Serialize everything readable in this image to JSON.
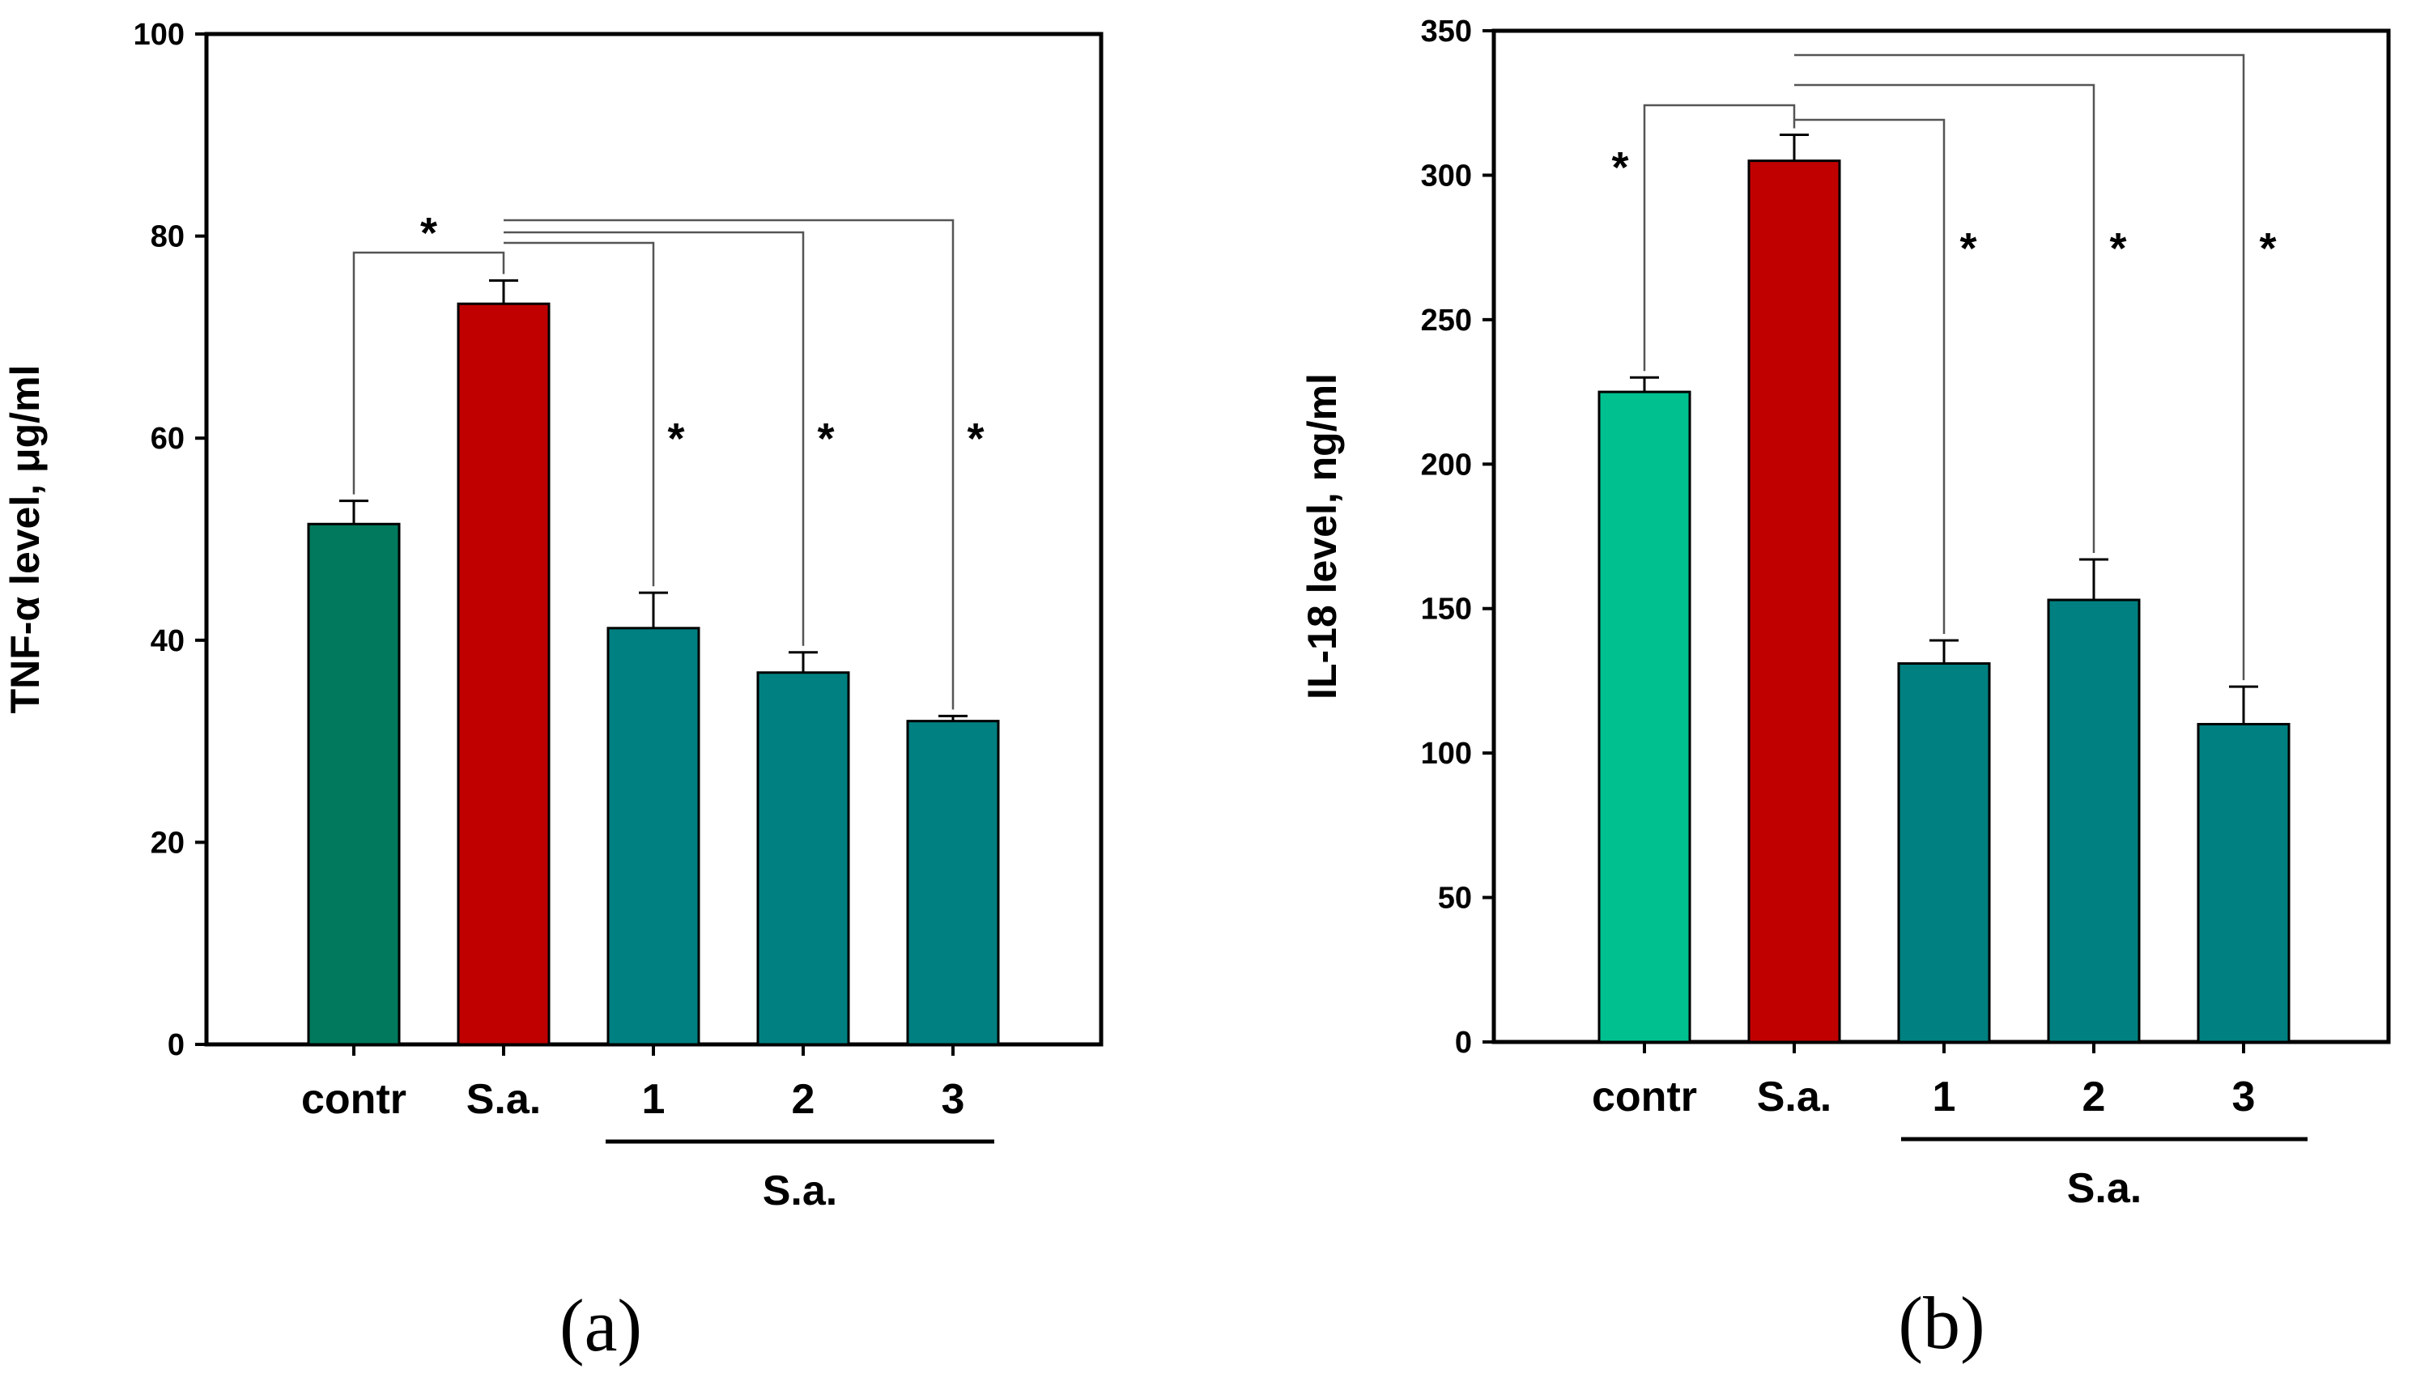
{
  "chart_data": [
    {
      "type": "bar",
      "panel_label": "(a)",
      "title": "",
      "ylabel": "TNF-α level, μg/ml",
      "xlabel": "",
      "ylim": [
        0,
        100
      ],
      "yticks": [
        0,
        20,
        40,
        60,
        80,
        100
      ],
      "categories": [
        "contr",
        "S.a.",
        "1",
        "2",
        "3"
      ],
      "group_label": "S.a.",
      "values": [
        51.5,
        73.3,
        41.2,
        36.8,
        32.0
      ],
      "errors": [
        2.3,
        2.3,
        3.5,
        2.0,
        0.5
      ],
      "colors": [
        "#00795c",
        "#c00000",
        "#008080",
        "#008080",
        "#008080"
      ],
      "significance": [
        {
          "from": 0,
          "to": 1,
          "label": "*"
        },
        {
          "from": 1,
          "to": 2,
          "label": "*"
        },
        {
          "from": 1,
          "to": 3,
          "label": "*"
        },
        {
          "from": 1,
          "to": 4,
          "label": "*"
        }
      ]
    },
    {
      "type": "bar",
      "panel_label": "(b)",
      "title": "",
      "ylabel": "IL-18 level, ng/ml",
      "xlabel": "",
      "ylim": [
        0,
        350
      ],
      "yticks": [
        0,
        50,
        100,
        150,
        200,
        250,
        300,
        350
      ],
      "categories": [
        "contr",
        "S.a.",
        "1",
        "2",
        "3"
      ],
      "group_label": "S.a.",
      "values": [
        225,
        305,
        131,
        153,
        110
      ],
      "errors": [
        5,
        9,
        8,
        14,
        13
      ],
      "colors": [
        "#00c090",
        "#c00000",
        "#008080",
        "#008080",
        "#008080"
      ],
      "significance": [
        {
          "from": 0,
          "to": 1,
          "label": "*"
        },
        {
          "from": 1,
          "to": 2,
          "label": "*"
        },
        {
          "from": 1,
          "to": 3,
          "label": "*"
        },
        {
          "from": 1,
          "to": 4,
          "label": "*"
        }
      ]
    }
  ]
}
